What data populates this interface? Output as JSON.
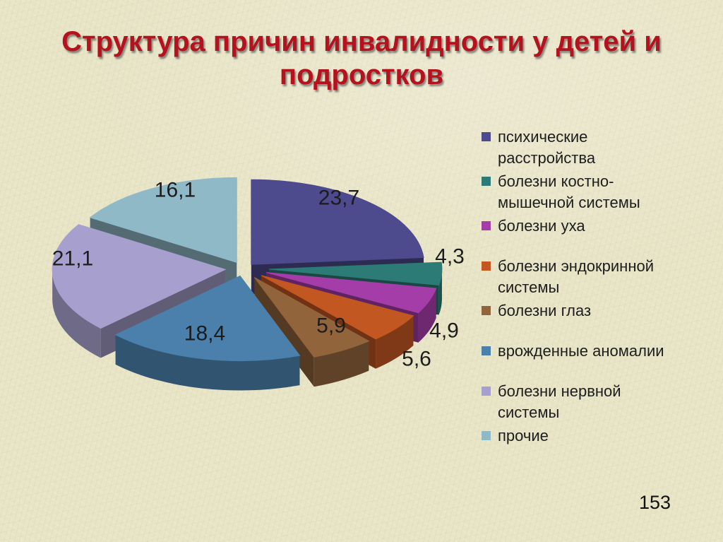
{
  "slide": {
    "title": "Структура причин инвалидности у детей и подростков",
    "page_number": "153"
  },
  "colors": {
    "title_text": "#b5121e",
    "background": "#e8e4c6",
    "value_label_text": "#1c1c1c",
    "legend_text": "#1d1d1d"
  },
  "chart_data": {
    "type": "pie",
    "style": "3d-exploded",
    "title": "Структура причин инвалидности у детей и подростков",
    "unit": "percent",
    "start_angle_deg": -90,
    "direction": "clockwise",
    "legend_position": "right",
    "total": 100.0,
    "slices": [
      {
        "label": "психические расстройства",
        "legend_lines": [
          "психические",
          "расстройства"
        ],
        "value": 23.7,
        "display": "23,7",
        "color": "#4d4a8e",
        "gap_before": false
      },
      {
        "label": "болезни костно-мышечной системы",
        "legend_lines": [
          "болезни костно-",
          "мышечной системы"
        ],
        "value": 4.3,
        "display": "4,3",
        "color": "#2c7b76",
        "gap_before": false
      },
      {
        "label": "болезни уха",
        "legend_lines": [
          "болезни уха"
        ],
        "value": 4.9,
        "display": "4,9",
        "color": "#a53da9",
        "gap_before": false
      },
      {
        "label": "болезни эндокринной системы",
        "legend_lines": [
          "болезни эндокринной",
          "системы"
        ],
        "value": 5.6,
        "display": "5,6",
        "color": "#c25722",
        "gap_before": true
      },
      {
        "label": "болезни глаз",
        "legend_lines": [
          "болезни глаз"
        ],
        "value": 5.9,
        "display": "5,9",
        "color": "#92643c",
        "gap_before": false
      },
      {
        "label": "врожденные аномалии",
        "legend_lines": [
          "врожденные аномалии"
        ],
        "value": 18.4,
        "display": "18,4",
        "color": "#4a80ab",
        "gap_before": true
      },
      {
        "label": "болезни нервной системы",
        "legend_lines": [
          "болезни нервной",
          "системы"
        ],
        "value": 21.1,
        "display": "21,1",
        "color": "#a7a0ce",
        "gap_before": true
      },
      {
        "label": "прочие",
        "legend_lines": [
          "прочие"
        ],
        "value": 16.1,
        "display": "16,1",
        "color": "#90b9c8",
        "gap_before": false
      }
    ]
  }
}
